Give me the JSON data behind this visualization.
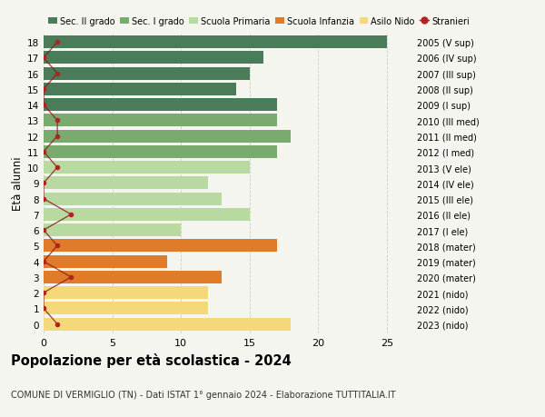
{
  "ages": [
    18,
    17,
    16,
    15,
    14,
    13,
    12,
    11,
    10,
    9,
    8,
    7,
    6,
    5,
    4,
    3,
    2,
    1,
    0
  ],
  "bar_values": [
    25,
    16,
    15,
    14,
    17,
    17,
    18,
    17,
    15,
    12,
    13,
    15,
    10,
    17,
    9,
    13,
    12,
    12,
    18
  ],
  "stranieri_values": [
    1,
    0,
    1,
    0,
    0,
    1,
    1,
    0,
    1,
    0,
    0,
    2,
    0,
    1,
    0,
    2,
    0,
    0,
    1
  ],
  "bar_colors": [
    "#4a7c59",
    "#4a7c59",
    "#4a7c59",
    "#4a7c59",
    "#4a7c59",
    "#7aab6e",
    "#7aab6e",
    "#7aab6e",
    "#b8d9a0",
    "#b8d9a0",
    "#b8d9a0",
    "#b8d9a0",
    "#b8d9a0",
    "#e07b2a",
    "#e07b2a",
    "#e07b2a",
    "#f5d87a",
    "#f5d87a",
    "#f5d87a"
  ],
  "right_labels": [
    "2005 (V sup)",
    "2006 (IV sup)",
    "2007 (III sup)",
    "2008 (II sup)",
    "2009 (I sup)",
    "2010 (III med)",
    "2011 (II med)",
    "2012 (I med)",
    "2013 (V ele)",
    "2014 (IV ele)",
    "2015 (III ele)",
    "2016 (II ele)",
    "2017 (I ele)",
    "2018 (mater)",
    "2019 (mater)",
    "2020 (mater)",
    "2021 (nido)",
    "2022 (nido)",
    "2023 (nido)"
  ],
  "legend_labels": [
    "Sec. II grado",
    "Sec. I grado",
    "Scuola Primaria",
    "Scuola Infanzia",
    "Asilo Nido",
    "Stranieri"
  ],
  "legend_colors": [
    "#4a7c59",
    "#7aab6e",
    "#b8d9a0",
    "#e07b2a",
    "#f5d87a",
    "#b22222"
  ],
  "title": "Popolazione per età scolastica - 2024",
  "subtitle": "COMUNE DI VERMIGLIO (TN) - Dati ISTAT 1° gennaio 2024 - Elaborazione TUTTITALIA.IT",
  "ylabel_left": "Età alunni",
  "xlim": [
    0,
    27
  ],
  "xticks": [
    0,
    5,
    10,
    15,
    20,
    25
  ],
  "background_color": "#f5f5f0"
}
